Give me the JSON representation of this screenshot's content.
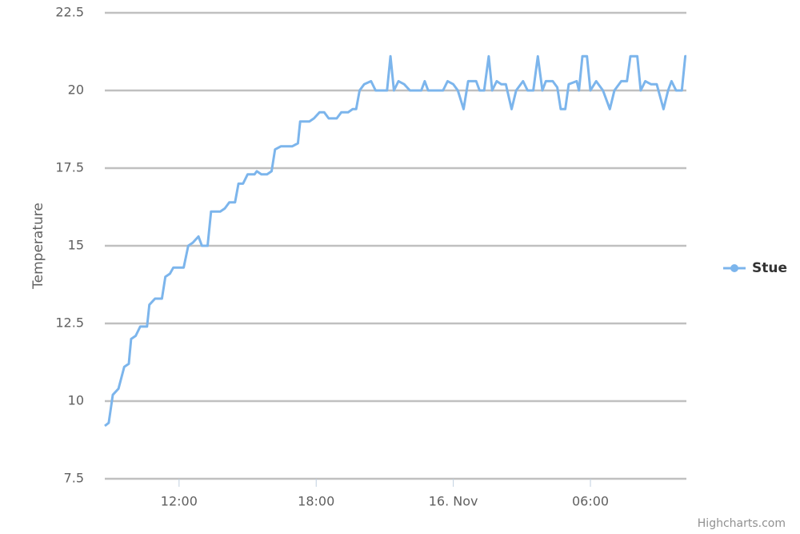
{
  "chart_data": {
    "type": "line",
    "y_axis_label": "Temperature",
    "credits": "Highcharts.com",
    "legend": "right",
    "grid": true,
    "xlim": [
      8.75,
      34.2
    ],
    "xticks": [
      {
        "value": 12,
        "label": "12:00"
      },
      {
        "value": 18,
        "label": "18:00"
      },
      {
        "value": 24,
        "label": "16. Nov"
      },
      {
        "value": 30,
        "label": "06:00"
      }
    ],
    "ylim": [
      7.5,
      22.5
    ],
    "yticks": [
      7.5,
      10,
      12.5,
      15,
      17.5,
      20,
      22.5
    ],
    "x": [
      8.75,
      8.92,
      9.1,
      9.35,
      9.6,
      9.8,
      9.9,
      10.1,
      10.3,
      10.6,
      10.7,
      10.95,
      11.25,
      11.4,
      11.6,
      11.75,
      12.2,
      12.4,
      12.6,
      12.85,
      13.0,
      13.25,
      13.4,
      13.8,
      14.0,
      14.2,
      14.45,
      14.6,
      14.8,
      15.0,
      15.3,
      15.4,
      15.6,
      15.85,
      16.05,
      16.2,
      16.45,
      16.95,
      17.2,
      17.3,
      17.7,
      17.9,
      18.15,
      18.35,
      18.55,
      18.9,
      19.1,
      19.4,
      19.6,
      19.75,
      19.9,
      20.1,
      20.4,
      20.6,
      21.1,
      21.25,
      21.4,
      21.6,
      21.85,
      22.1,
      22.6,
      22.75,
      22.9,
      23.55,
      23.75,
      24.0,
      24.2,
      24.45,
      24.65,
      25.0,
      25.15,
      25.35,
      25.55,
      25.7,
      25.9,
      26.1,
      26.3,
      26.55,
      26.75,
      27.05,
      27.25,
      27.5,
      27.7,
      27.9,
      28.05,
      28.35,
      28.55,
      28.7,
      28.9,
      29.05,
      29.4,
      29.5,
      29.65,
      29.85,
      30.0,
      30.25,
      30.55,
      30.85,
      31.05,
      31.35,
      31.6,
      31.75,
      32.05,
      32.2,
      32.4,
      32.65,
      32.9,
      33.2,
      33.4,
      33.55,
      33.75,
      34.0,
      34.15,
      34.2
    ],
    "series": [
      {
        "name": "Stue",
        "color": "#7cb5ec",
        "values": [
          9.2,
          9.3,
          10.2,
          10.4,
          11.1,
          11.2,
          12.0,
          12.1,
          12.4,
          12.4,
          13.1,
          13.3,
          13.3,
          14.0,
          14.1,
          14.3,
          14.3,
          15.0,
          15.1,
          15.3,
          15.0,
          15.0,
          16.1,
          16.1,
          16.2,
          16.4,
          16.4,
          17.0,
          17.0,
          17.3,
          17.3,
          17.4,
          17.3,
          17.3,
          17.4,
          18.1,
          18.2,
          18.2,
          18.3,
          19.0,
          19.0,
          19.1,
          19.3,
          19.3,
          19.1,
          19.1,
          19.3,
          19.3,
          19.4,
          19.4,
          20.0,
          20.2,
          20.3,
          20.0,
          20.0,
          21.1,
          20.0,
          20.3,
          20.2,
          20.0,
          20.0,
          20.3,
          20.0,
          20.0,
          20.3,
          20.2,
          20.0,
          19.4,
          20.3,
          20.3,
          20.0,
          20.0,
          21.1,
          20.0,
          20.3,
          20.2,
          20.2,
          19.4,
          20.0,
          20.3,
          20.0,
          20.0,
          21.1,
          20.0,
          20.3,
          20.3,
          20.1,
          19.4,
          19.4,
          20.2,
          20.3,
          20.0,
          21.1,
          21.1,
          20.0,
          20.3,
          20.0,
          19.4,
          20.0,
          20.3,
          20.3,
          21.1,
          21.1,
          20.0,
          20.3,
          20.2,
          20.2,
          19.4,
          20.0,
          20.3,
          20.0,
          20.0,
          21.1,
          21.1
        ]
      }
    ]
  }
}
